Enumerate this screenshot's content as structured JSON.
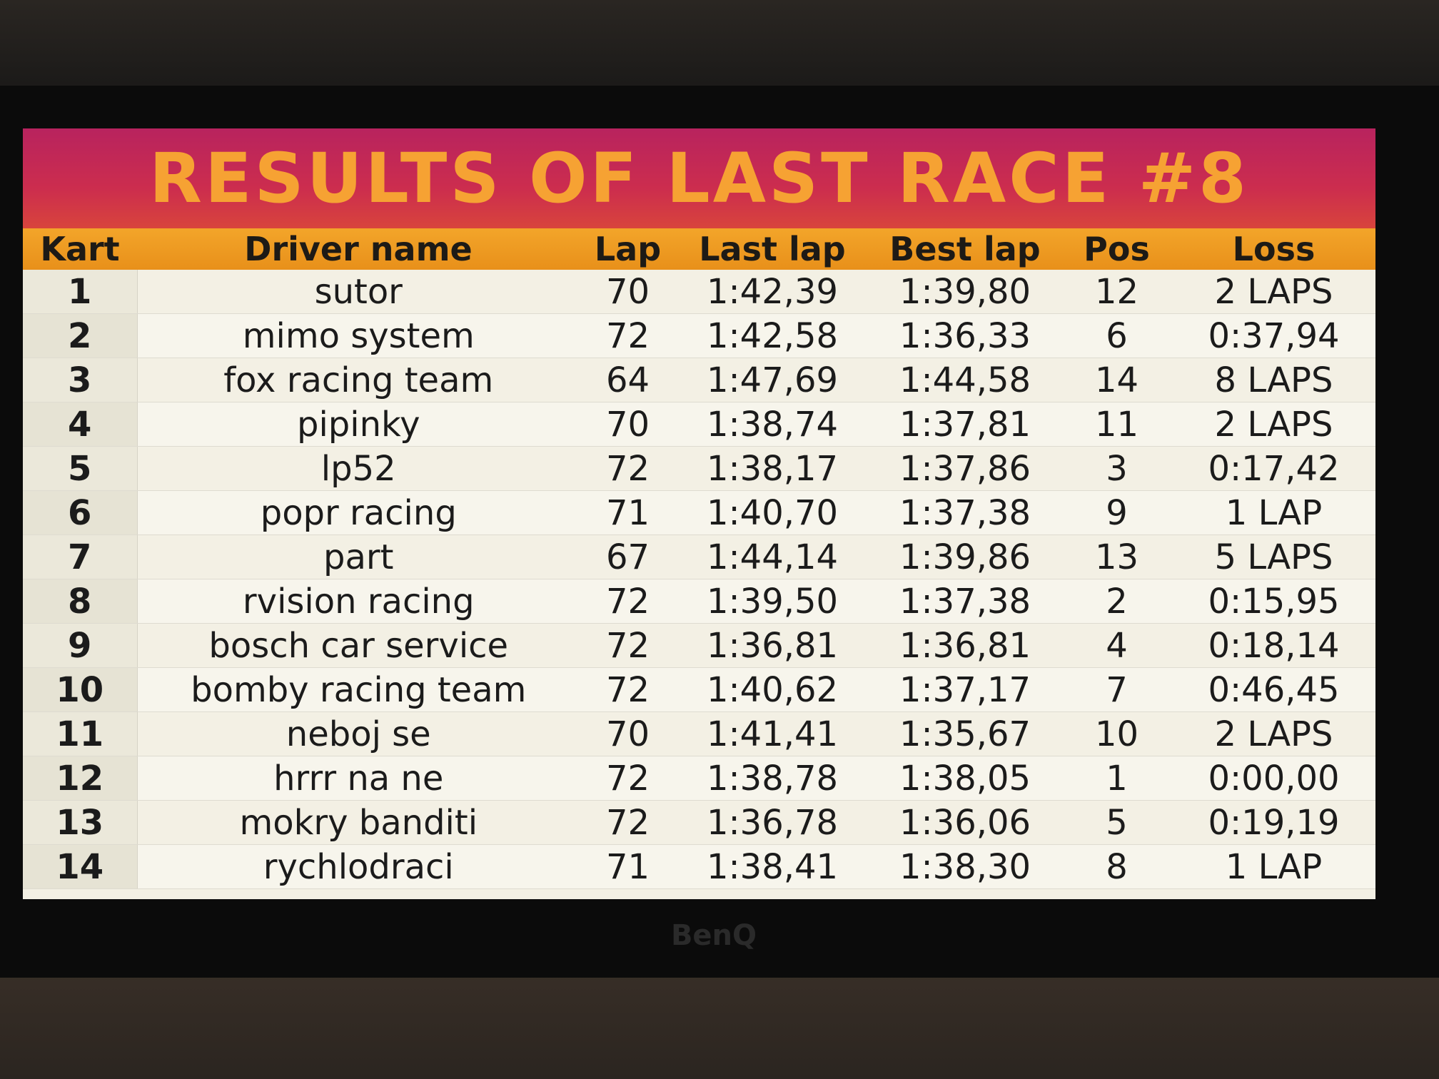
{
  "header": {
    "title": "RESULTS OF LAST RACE #8"
  },
  "table": {
    "columns": [
      "Kart",
      "Driver name",
      "Lap",
      "Last lap",
      "Best lap",
      "Pos",
      "Loss"
    ],
    "rows": [
      [
        1,
        "sutor",
        70,
        "1:42,39",
        "1:39,80",
        12,
        "2 LAPS"
      ],
      [
        2,
        "mimo system",
        72,
        "1:42,58",
        "1:36,33",
        6,
        "0:37,94"
      ],
      [
        3,
        "fox racing team",
        64,
        "1:47,69",
        "1:44,58",
        14,
        "8 LAPS"
      ],
      [
        4,
        "pipinky",
        70,
        "1:38,74",
        "1:37,81",
        11,
        "2 LAPS"
      ],
      [
        5,
        "lp52",
        72,
        "1:38,17",
        "1:37,86",
        3,
        "0:17,42"
      ],
      [
        6,
        "popr racing",
        71,
        "1:40,70",
        "1:37,38",
        9,
        "1 LAP"
      ],
      [
        7,
        "part",
        67,
        "1:44,14",
        "1:39,86",
        13,
        "5 LAPS"
      ],
      [
        8,
        "rvision racing",
        72,
        "1:39,50",
        "1:37,38",
        2,
        "0:15,95"
      ],
      [
        9,
        "bosch car service",
        72,
        "1:36,81",
        "1:36,81",
        4,
        "0:18,14"
      ],
      [
        10,
        "bomby racing team",
        72,
        "1:40,62",
        "1:37,17",
        7,
        "0:46,45"
      ],
      [
        11,
        "neboj se",
        70,
        "1:41,41",
        "1:35,67",
        10,
        "2 LAPS"
      ],
      [
        12,
        "hrrr na ne",
        72,
        "1:38,78",
        "1:38,05",
        1,
        "0:00,00"
      ],
      [
        13,
        "mokry banditi",
        72,
        "1:36,78",
        "1:36,06",
        5,
        "0:19,19"
      ],
      [
        14,
        "rychlodraci",
        71,
        "1:38,41",
        "1:38,30",
        8,
        "1 LAP"
      ]
    ]
  },
  "monitor": {
    "brand": "BenQ"
  }
}
